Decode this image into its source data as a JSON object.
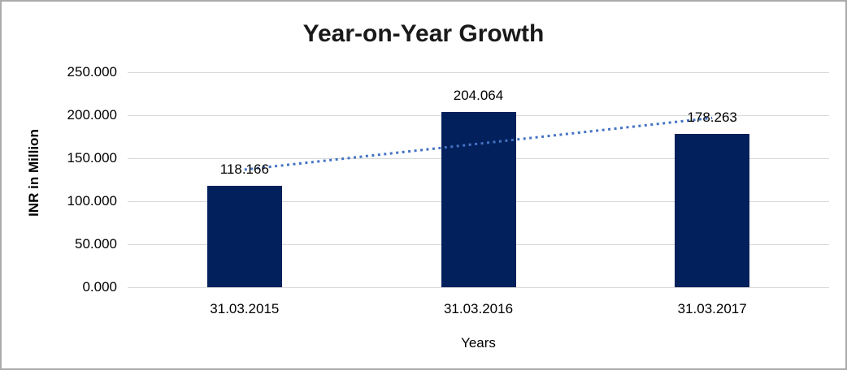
{
  "chart_data": {
    "type": "bar",
    "title": "Year-on-Year Growth",
    "xlabel": "Years",
    "ylabel": "INR in Million",
    "categories": [
      "31.03.2015",
      "31.03.2016",
      "31.03.2017"
    ],
    "values": [
      118.166,
      204.064,
      178.263
    ],
    "value_labels": [
      "118.166",
      "204.064",
      "178.263"
    ],
    "ylim": [
      0,
      250
    ],
    "yticks": [
      0,
      50,
      100,
      150,
      200,
      250
    ],
    "ytick_labels": [
      "0.000",
      "50.000",
      "100.000",
      "150.000",
      "200.000",
      "250.000"
    ],
    "grid": true,
    "legend": false,
    "trendline": {
      "type": "linear",
      "style": "dotted"
    },
    "colors": {
      "bar": "#02215C",
      "trendline": "#4472C4",
      "gridline": "#D9D9D9",
      "title_text": "#1A1A1A",
      "axis_text": "#000000",
      "background": "#FFFFFF",
      "border": "#ABABAB"
    }
  }
}
